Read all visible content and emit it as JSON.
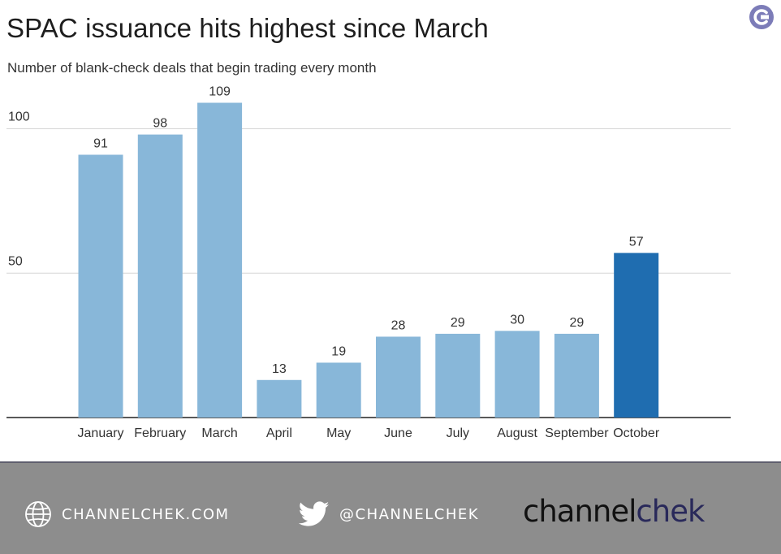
{
  "brand_logo_icon": "channelchek-c-logo-icon",
  "colors": {
    "bar": "#88b7d9",
    "bar_highlight": "#1f6db0",
    "grid": "#d6d6d6",
    "axis": "#222222",
    "footer_bg": "#8d8d8d"
  },
  "chart_data": {
    "type": "bar",
    "title": "SPAC issuance hits highest since March",
    "subtitle": "Number of blank-check deals that begin trading every month",
    "xlabel": "",
    "ylabel": "",
    "categories": [
      "January",
      "February",
      "March",
      "April",
      "May",
      "June",
      "July",
      "August",
      "September",
      "October"
    ],
    "values": [
      91,
      98,
      109,
      13,
      19,
      28,
      29,
      30,
      29,
      57
    ],
    "highlight_index": 9,
    "ylim": [
      0,
      110
    ],
    "yticks": [
      50,
      100
    ],
    "ytick_labels": [
      "50",
      "100"
    ],
    "grid": true,
    "legend": "none",
    "data_labels": true
  },
  "footer": {
    "website_icon": "globe-icon",
    "website": "CHANNELCHEK.COM",
    "twitter_icon": "twitter-bird-icon",
    "twitter": "@CHANNELCHEK",
    "wordmark_part1": "channel",
    "wordmark_part2": "chek"
  }
}
